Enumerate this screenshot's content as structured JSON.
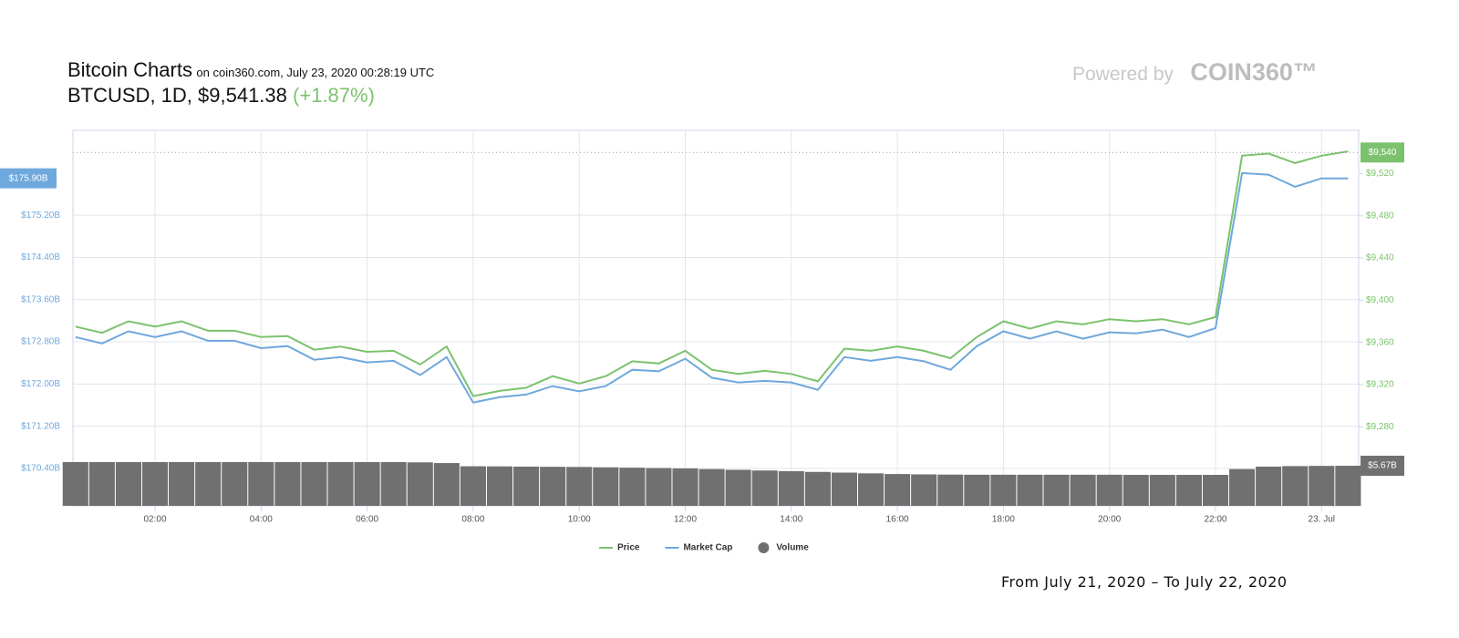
{
  "chart_data": {
    "type": "line",
    "title": "Bitcoin Charts",
    "subtitle": "on coin360.com, July 23, 2020 00:28:19 UTC",
    "symbol": "BTCUSD, 1D, $9,541.38",
    "change": "(+1.87%)",
    "brand_prefix": "Powered by",
    "brand": "COIN360™",
    "footer": "From July 21, 2020 – To July 22, 2020",
    "x": [
      0.5,
      1,
      1.5,
      2,
      2.5,
      3,
      3.5,
      4,
      4.5,
      5,
      5.5,
      6,
      6.5,
      7,
      7.5,
      8,
      8.5,
      9,
      9.5,
      10,
      10.5,
      11,
      11.5,
      12,
      12.5,
      13,
      13.5,
      14,
      14.5,
      15,
      15.5,
      16,
      16.5,
      17,
      17.5,
      18,
      18.5,
      19,
      19.5,
      20,
      20.5,
      21,
      21.5,
      22,
      22.5,
      23,
      23.5,
      24,
      24.5
    ],
    "xlim": [
      0.452,
      24.7
    ],
    "xticks": [
      {
        "value": 2,
        "label": "02:00"
      },
      {
        "value": 4,
        "label": "04:00"
      },
      {
        "value": 6,
        "label": "06:00"
      },
      {
        "value": 8,
        "label": "08:00"
      },
      {
        "value": 10,
        "label": "10:00"
      },
      {
        "value": 12,
        "label": "12:00"
      },
      {
        "value": 14,
        "label": "14:00"
      },
      {
        "value": 16,
        "label": "16:00"
      },
      {
        "value": 18,
        "label": "18:00"
      },
      {
        "value": 20,
        "label": "20:00"
      },
      {
        "value": 22,
        "label": "22:00"
      },
      {
        "value": 24,
        "label": "23. Jul"
      }
    ],
    "ylim": [
      169.69,
      176.81
    ],
    "yticks": [
      {
        "value": 170.4,
        "label": "$170.40B"
      },
      {
        "value": 171.2,
        "label": "$171.20B"
      },
      {
        "value": 172.0,
        "label": "$172.00B"
      },
      {
        "value": 172.8,
        "label": "$172.80B"
      },
      {
        "value": 173.6,
        "label": "$173.60B"
      },
      {
        "value": 174.4,
        "label": "$174.40B"
      },
      {
        "value": 175.2,
        "label": "$175.20B"
      }
    ],
    "y2lim": [
      9205,
      9561
    ],
    "y2ticks": [
      {
        "value": 9280,
        "label": "$9,280"
      },
      {
        "value": 9320,
        "label": "$9,320"
      },
      {
        "value": 9360,
        "label": "$9,360"
      },
      {
        "value": 9400,
        "label": "$9,400"
      },
      {
        "value": 9440,
        "label": "$9,440"
      },
      {
        "value": 9480,
        "label": "$9,480"
      },
      {
        "value": 9520,
        "label": "$9,520"
      }
    ],
    "y3lim": [
      0,
      7.09
    ],
    "ymarker": {
      "value": 175.9,
      "label": "$175.90B"
    },
    "y2marker": {
      "value": 9540,
      "label": "$9,540"
    },
    "y3marker": {
      "value": 5.67,
      "label": "$5.67B"
    },
    "grid": true,
    "series": [
      {
        "name": "Price",
        "color": "#7cc26e",
        "axis": "y2",
        "values": [
          9375,
          9369,
          9380,
          9375,
          9380,
          9371,
          9371,
          9365,
          9366,
          9353,
          9356,
          9351,
          9352,
          9339,
          9356,
          9309,
          9314,
          9317,
          9328,
          9321,
          9328,
          9342,
          9340,
          9352,
          9334,
          9330,
          9333,
          9330,
          9323,
          9354,
          9352,
          9356,
          9352,
          9345,
          9365,
          9380,
          9373,
          9380,
          9377,
          9382,
          9380,
          9382,
          9377,
          9384,
          9537,
          9539,
          9530,
          9537,
          9541
        ]
      },
      {
        "name": "Market Cap",
        "color": "#6fa8dc",
        "axis": "y",
        "values": [
          172.89,
          172.77,
          173.0,
          172.89,
          173.0,
          172.82,
          172.82,
          172.68,
          172.72,
          172.46,
          172.51,
          172.41,
          172.44,
          172.17,
          172.51,
          171.65,
          171.75,
          171.8,
          171.96,
          171.86,
          171.96,
          172.27,
          172.24,
          172.48,
          172.12,
          172.03,
          172.06,
          172.03,
          171.89,
          172.51,
          172.44,
          172.51,
          172.43,
          172.27,
          172.72,
          173.0,
          172.86,
          173.0,
          172.86,
          172.98,
          172.96,
          173.03,
          172.89,
          173.06,
          176.0,
          175.97,
          175.74,
          175.9,
          175.9
        ]
      },
      {
        "name": "Volume",
        "color": "#707070",
        "axis": "y3",
        "type": "bar",
        "values": [
          6.19,
          6.19,
          6.19,
          6.19,
          6.19,
          6.19,
          6.19,
          6.19,
          6.19,
          6.19,
          6.19,
          6.19,
          6.19,
          6.15,
          6.05,
          5.6,
          5.58,
          5.55,
          5.52,
          5.5,
          5.45,
          5.4,
          5.35,
          5.3,
          5.2,
          5.1,
          5.0,
          4.9,
          4.8,
          4.7,
          4.6,
          4.5,
          4.45,
          4.42,
          4.4,
          4.4,
          4.4,
          4.4,
          4.4,
          4.4,
          4.38,
          4.38,
          4.38,
          4.38,
          5.2,
          5.55,
          5.62,
          5.65,
          5.67
        ]
      }
    ]
  }
}
